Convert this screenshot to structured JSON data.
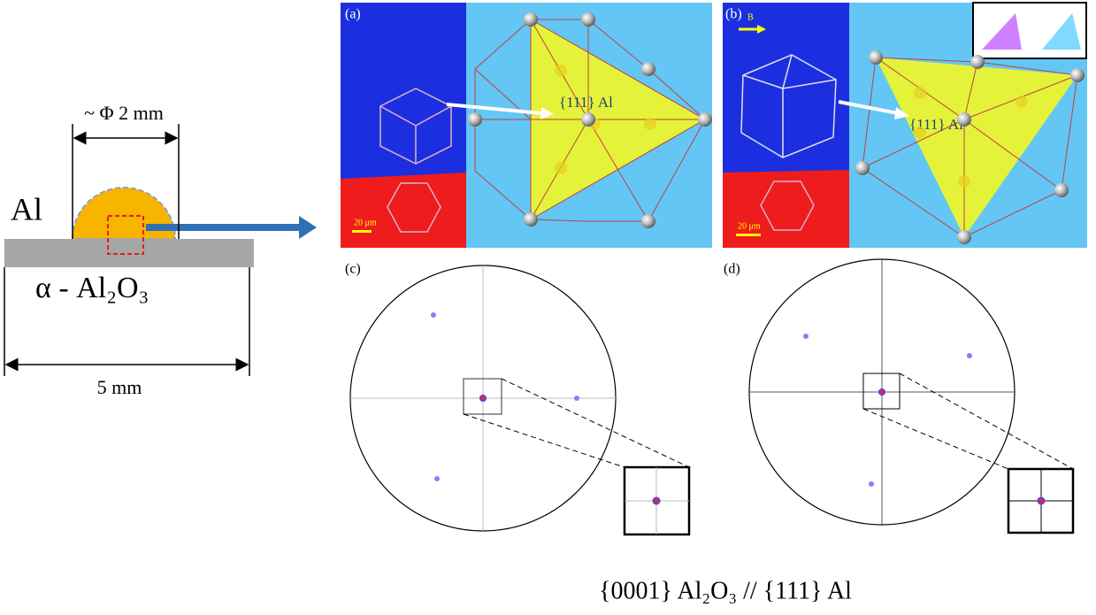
{
  "schematic": {
    "diameter_label": "~ Φ 2 mm",
    "metal_label": "Al",
    "substrate_label": "α - Al₂O₃",
    "width_label": "5 mm"
  },
  "panels": [
    {
      "label": "(a)",
      "plane_label": "{111} Al",
      "scale_bar": "20 μm"
    },
    {
      "label": "(b)",
      "direction_label": "B",
      "plane_label": "{111} Al",
      "scale_bar": "20 μm"
    },
    {
      "label": "(c)"
    },
    {
      "label": "(d)"
    }
  ],
  "caption": "{0001} Al₂O₃ // {111} Al"
}
